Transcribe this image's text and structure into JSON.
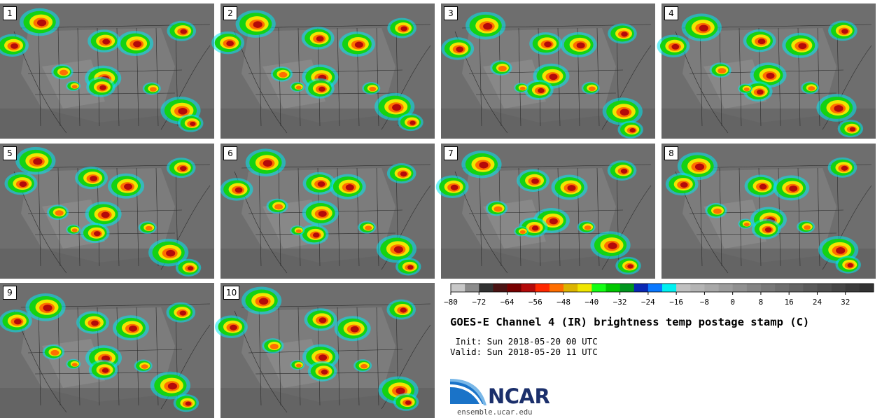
{
  "panels": [
    {
      "label": "1"
    },
    {
      "label": "2"
    },
    {
      "label": "3"
    },
    {
      "label": "4"
    },
    {
      "label": "5"
    },
    {
      "label": "6"
    },
    {
      "label": "7"
    },
    {
      "label": "8"
    },
    {
      "label": "9"
    },
    {
      "label": "10"
    }
  ],
  "colorbar": {
    "ticks": [
      "−80",
      "−72",
      "−64",
      "−56",
      "−48",
      "−40",
      "−32",
      "−24",
      "−16",
      "−8",
      "0",
      "8",
      "16",
      "24",
      "32"
    ],
    "colors": [
      "#c8c8c8",
      "#8c8c8c",
      "#323232",
      "#4b1414",
      "#780000",
      "#b40a0a",
      "#ff2800",
      "#ff6e00",
      "#dcb400",
      "#f0e600",
      "#14ff14",
      "#00c800",
      "#00961e",
      "#0a28b4",
      "#0a78ff",
      "#00f0f0",
      "#c0c0c0",
      "#b4b4b4",
      "#a8a8a8",
      "#9c9c9c",
      "#909090",
      "#848484",
      "#787878",
      "#6e6e6e",
      "#646464",
      "#5a5a5a",
      "#505050",
      "#464646",
      "#3c3c3c",
      "#323232"
    ]
  },
  "title": "GOES-E Channel 4 (IR) brightness temp postage stamp (C)",
  "init_line": " Init: Sun 2018-05-20 00 UTC",
  "valid_line": "Valid: Sun 2018-05-20 11 UTC",
  "logo": {
    "text": "NCAR",
    "url": "ensemble.ucar.edu"
  }
}
